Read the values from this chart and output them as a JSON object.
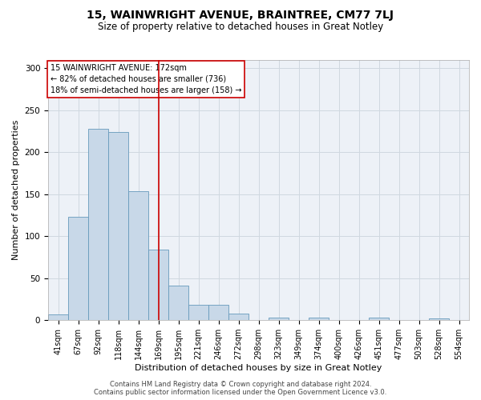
{
  "title1": "15, WAINWRIGHT AVENUE, BRAINTREE, CM77 7LJ",
  "title2": "Size of property relative to detached houses in Great Notley",
  "xlabel": "Distribution of detached houses by size in Great Notley",
  "ylabel": "Number of detached properties",
  "annotation_line1": "15 WAINWRIGHT AVENUE: 172sqm",
  "annotation_line2": "← 82% of detached houses are smaller (736)",
  "annotation_line3": "18% of semi-detached houses are larger (158) →",
  "footer1": "Contains HM Land Registry data © Crown copyright and database right 2024.",
  "footer2": "Contains public sector information licensed under the Open Government Licence v3.0.",
  "bar_color": "#c8d8e8",
  "bar_edge_color": "#6699bb",
  "vline_color": "#cc0000",
  "categories": [
    "41sqm",
    "67sqm",
    "92sqm",
    "118sqm",
    "144sqm",
    "169sqm",
    "195sqm",
    "221sqm",
    "246sqm",
    "272sqm",
    "298sqm",
    "323sqm",
    "349sqm",
    "374sqm",
    "400sqm",
    "426sqm",
    "451sqm",
    "477sqm",
    "503sqm",
    "528sqm",
    "554sqm"
  ],
  "values": [
    7,
    123,
    228,
    224,
    154,
    84,
    41,
    18,
    18,
    8,
    0,
    3,
    0,
    3,
    0,
    0,
    3,
    0,
    0,
    2,
    0
  ],
  "ylim": [
    0,
    310
  ],
  "yticks": [
    0,
    50,
    100,
    150,
    200,
    250,
    300
  ],
  "grid_color": "#d0d8e0",
  "background_color": "#edf1f7",
  "title1_fontsize": 10,
  "title2_fontsize": 8.5,
  "axis_label_fontsize": 8,
  "tick_fontsize": 7,
  "annotation_fontsize": 7,
  "footer_fontsize": 6
}
